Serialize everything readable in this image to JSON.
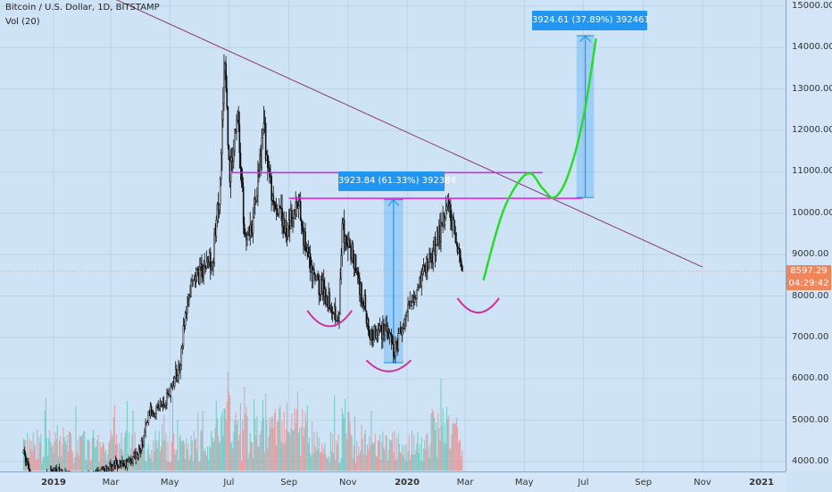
{
  "legend": {
    "symbol": "Bitcoin / U.S. Dollar, 1D, BITSTAMP",
    "volume": "Vol (20)"
  },
  "price_tags": {
    "last_price": "8597.29",
    "countdown": "04:29:42",
    "color": "#f0845a"
  },
  "annotations": {
    "measure_1": "3923.84 (61.33%) 392384",
    "measure_2": "3924.61 (37.89%) 392461"
  },
  "colors": {
    "background": "#cfe3f7",
    "candle": "#111111",
    "volume_up": "#60c6b8",
    "volume_down": "#ee8c8c",
    "trendline": "#8b3a72",
    "resistance": "#e020e0",
    "projection": "#22dd22",
    "arc": "#cc3399",
    "measure": "#2196f3"
  },
  "chart_data": {
    "type": "candlestick",
    "title": "Bitcoin / U.S. Dollar, 1D, BITSTAMP",
    "ylim": [
      3760,
      15280
    ],
    "y_ticks": [
      "15000.00",
      "14000.00",
      "13000.00",
      "12000.00",
      "11000.00",
      "10000.00",
      "9000.00",
      "8000.00",
      "7000.00",
      "6000.00",
      "5000.00",
      "4000.00"
    ],
    "x_ticks": [
      "2019",
      "Mar",
      "May",
      "Jul",
      "Sep",
      "Nov",
      "2020",
      "Mar",
      "May",
      "Jul",
      "Sep",
      "Nov",
      "2021"
    ],
    "x_ticks_bold": [
      "2019",
      "2020",
      "2021"
    ],
    "price_path": [
      {
        "date": "2018-12-01",
        "price": 4200
      },
      {
        "date": "2018-12-15",
        "price": 3300
      },
      {
        "date": "2019-01-01",
        "price": 3800
      },
      {
        "date": "2019-01-20",
        "price": 3600
      },
      {
        "date": "2019-02-10",
        "price": 3600
      },
      {
        "date": "2019-02-25",
        "price": 3850
      },
      {
        "date": "2019-03-20",
        "price": 4000
      },
      {
        "date": "2019-04-01",
        "price": 4300
      },
      {
        "date": "2019-04-10",
        "price": 5200
      },
      {
        "date": "2019-04-25",
        "price": 5400
      },
      {
        "date": "2019-05-10",
        "price": 6200
      },
      {
        "date": "2019-05-20",
        "price": 8000
      },
      {
        "date": "2019-06-01",
        "price": 8600
      },
      {
        "date": "2019-06-15",
        "price": 9000
      },
      {
        "date": "2019-06-22",
        "price": 10800
      },
      {
        "date": "2019-06-26",
        "price": 13800
      },
      {
        "date": "2019-07-02",
        "price": 10800
      },
      {
        "date": "2019-07-10",
        "price": 12500
      },
      {
        "date": "2019-07-17",
        "price": 9500
      },
      {
        "date": "2019-07-26",
        "price": 9800
      },
      {
        "date": "2019-08-06",
        "price": 12000
      },
      {
        "date": "2019-08-15",
        "price": 10200
      },
      {
        "date": "2019-08-30",
        "price": 9600
      },
      {
        "date": "2019-09-10",
        "price": 10200
      },
      {
        "date": "2019-09-24",
        "price": 8500
      },
      {
        "date": "2019-10-05",
        "price": 8200
      },
      {
        "date": "2019-10-23",
        "price": 7500
      },
      {
        "date": "2019-10-26",
        "price": 9700
      },
      {
        "date": "2019-11-08",
        "price": 8800
      },
      {
        "date": "2019-11-25",
        "price": 7000
      },
      {
        "date": "2019-12-10",
        "price": 7300
      },
      {
        "date": "2019-12-18",
        "price": 6600
      },
      {
        "date": "2019-12-28",
        "price": 7300
      },
      {
        "date": "2020-01-08",
        "price": 8100
      },
      {
        "date": "2020-01-20",
        "price": 8700
      },
      {
        "date": "2020-02-01",
        "price": 9400
      },
      {
        "date": "2020-02-13",
        "price": 10300
      },
      {
        "date": "2020-02-18",
        "price": 9700
      },
      {
        "date": "2020-02-25",
        "price": 8800
      },
      {
        "date": "2020-02-27",
        "price": 8600
      }
    ],
    "trendline": [
      {
        "date": "2018-11-01",
        "price": 16500
      },
      {
        "date": "2020-11-01",
        "price": 8700
      }
    ],
    "resistance_upper": {
      "from": "2019-07-01",
      "to": "2020-05-20",
      "price": 10980
    },
    "resistance_lower": {
      "from": "2019-09-01",
      "to": "2020-06-30",
      "price": 10360
    },
    "projection_path": [
      {
        "date": "2020-03-20",
        "price": 8400
      },
      {
        "date": "2020-04-10",
        "price": 10100
      },
      {
        "date": "2020-05-04",
        "price": 10960
      },
      {
        "date": "2020-05-20",
        "price": 10600
      },
      {
        "date": "2020-06-01",
        "price": 10380
      },
      {
        "date": "2020-06-15",
        "price": 10900
      },
      {
        "date": "2020-07-01",
        "price": 12300
      },
      {
        "date": "2020-07-14",
        "price": 14200
      }
    ],
    "arcs": [
      {
        "from": "2019-09-20",
        "to": "2019-11-05",
        "top_price": 7650,
        "bottom_price": 7270
      },
      {
        "from": "2019-11-20",
        "to": "2020-01-05",
        "top_price": 6450,
        "bottom_price": 6180
      },
      {
        "from": "2020-02-22",
        "to": "2020-04-05",
        "top_price": 7950,
        "bottom_price": 7600
      }
    ],
    "measure_ranges": [
      {
        "from": "2019-12-08",
        "to": "2019-12-28",
        "low": 6390,
        "high": 10330
      },
      {
        "from": "2020-06-24",
        "to": "2020-07-12",
        "low": 10380,
        "high": 14290
      }
    ],
    "last_price": 8597.29
  }
}
